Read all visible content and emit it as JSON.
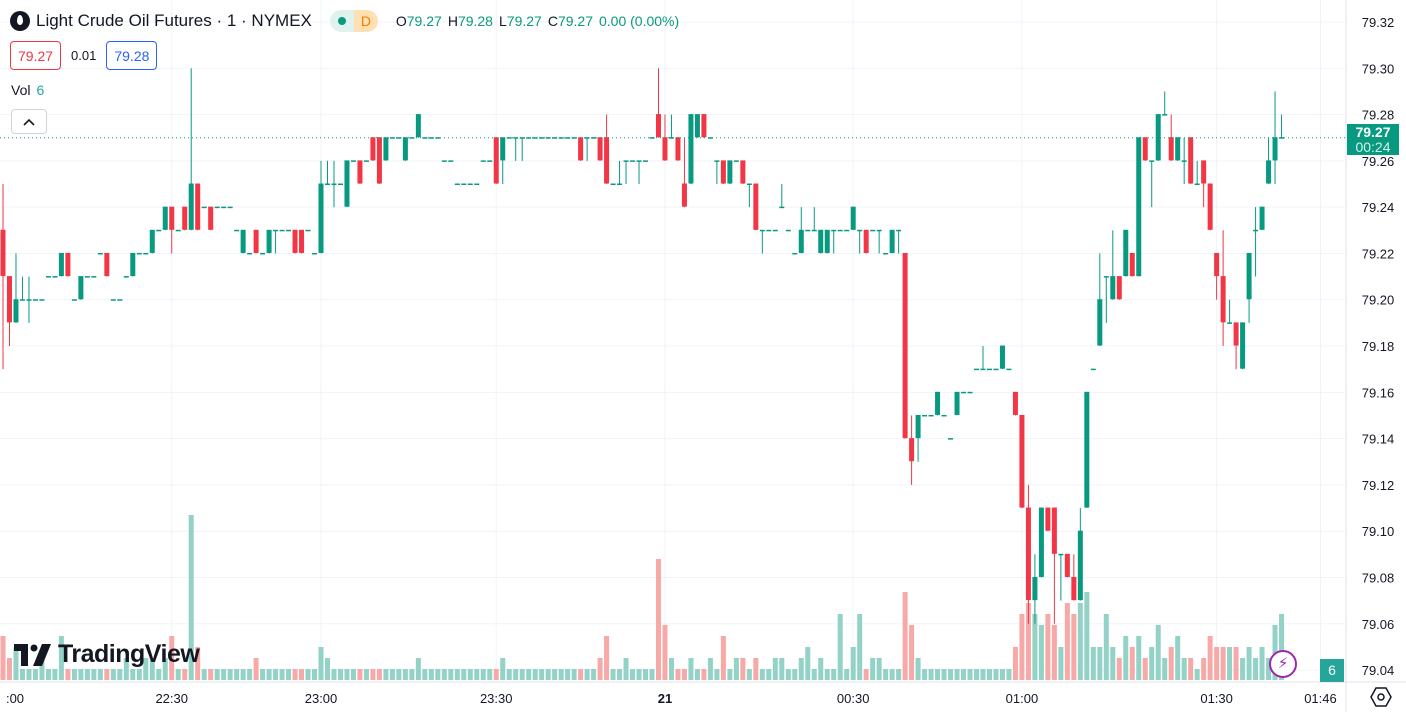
{
  "header": {
    "symbol_icon": "oil-drop-icon",
    "title": "Light Crude Oil Futures · 1 · NYMEX",
    "badge_letter": "D",
    "ohlc": [
      {
        "k": "O",
        "v": "79.27"
      },
      {
        "k": "H",
        "v": "79.28"
      },
      {
        "k": "L",
        "v": "79.27"
      },
      {
        "k": "C",
        "v": "79.27"
      }
    ],
    "change": "0.00 (0.00%)"
  },
  "quote": {
    "bid": "79.27",
    "spread": "0.01",
    "ask": "79.28"
  },
  "volume_legend": {
    "label": "Vol",
    "value": "6"
  },
  "price_label": {
    "price": "79.27",
    "countdown": "00:24"
  },
  "volume_axis_label": "6",
  "logo_text": "TradingView",
  "colors": {
    "up": "#089981",
    "down": "#F23645",
    "vol_up": "#92D2C7",
    "vol_down": "#F7A9A7",
    "price_line": "#089981"
  },
  "chart_data": {
    "type": "candlestick",
    "interval": "1",
    "y_ticks": [
      "79.32",
      "79.30",
      "79.28",
      "79.26",
      "79.24",
      "79.22",
      "79.20",
      "79.18",
      "79.16",
      "79.14",
      "79.12",
      "79.10",
      "79.08",
      "79.06",
      "79.04"
    ],
    "ylim": [
      79.035,
      79.32
    ],
    "x_ticks": [
      {
        "label": ":00",
        "bar": 3
      },
      {
        "label": "22:30",
        "bar": 26
      },
      {
        "label": "23:00",
        "bar": 49
      },
      {
        "label": "23:30",
        "bar": 76
      },
      {
        "label": "21",
        "bar": 102,
        "bold": true
      },
      {
        "label": "00:30",
        "bar": 131
      },
      {
        "label": "01:00",
        "bar": 157
      },
      {
        "label": "01:30",
        "bar": 187
      },
      {
        "label": "01:46",
        "bar": 203
      }
    ],
    "last_price": 79.27,
    "grid": true,
    "ohlcv_columns": [
      "open",
      "high",
      "low",
      "close",
      "volume"
    ],
    "ohlcv": [
      [
        79.23,
        79.25,
        79.17,
        79.21,
        4
      ],
      [
        79.21,
        79.21,
        79.18,
        79.19,
        2
      ],
      [
        79.19,
        79.22,
        79.19,
        79.2,
        3
      ],
      [
        79.2,
        79.21,
        79.2,
        79.2,
        1
      ],
      [
        79.2,
        79.21,
        79.19,
        79.2,
        1
      ],
      [
        79.2,
        79.2,
        79.2,
        79.2,
        1
      ],
      [
        79.2,
        79.2,
        79.2,
        79.2,
        2
      ],
      [
        79.21,
        79.21,
        79.21,
        79.21,
        1
      ],
      [
        79.21,
        79.21,
        79.21,
        79.21,
        1
      ],
      [
        79.21,
        79.22,
        79.21,
        79.22,
        4
      ],
      [
        79.22,
        79.22,
        79.21,
        79.21,
        1
      ],
      [
        79.2,
        79.2,
        79.2,
        79.2,
        1
      ],
      [
        79.2,
        79.21,
        79.2,
        79.21,
        1
      ],
      [
        79.21,
        79.21,
        79.21,
        79.21,
        1
      ],
      [
        79.21,
        79.21,
        79.21,
        79.21,
        1
      ],
      [
        79.22,
        79.22,
        79.22,
        79.22,
        1
      ],
      [
        79.22,
        79.22,
        79.21,
        79.21,
        1
      ],
      [
        79.2,
        79.2,
        79.2,
        79.2,
        1
      ],
      [
        79.2,
        79.2,
        79.2,
        79.2,
        1
      ],
      [
        79.21,
        79.21,
        79.21,
        79.21,
        2
      ],
      [
        79.21,
        79.22,
        79.21,
        79.22,
        1
      ],
      [
        79.22,
        79.22,
        79.22,
        79.22,
        1
      ],
      [
        79.22,
        79.22,
        79.22,
        79.22,
        2
      ],
      [
        79.22,
        79.23,
        79.22,
        79.23,
        2
      ],
      [
        79.23,
        79.23,
        79.23,
        79.23,
        1
      ],
      [
        79.23,
        79.24,
        79.23,
        79.24,
        2
      ],
      [
        79.24,
        79.24,
        79.22,
        79.23,
        4
      ],
      [
        79.23,
        79.23,
        79.23,
        79.23,
        1
      ],
      [
        79.24,
        79.24,
        79.23,
        79.23,
        1
      ],
      [
        79.23,
        79.3,
        79.23,
        79.25,
        15
      ],
      [
        79.25,
        79.25,
        79.23,
        79.23,
        3
      ],
      [
        79.24,
        79.24,
        79.24,
        79.24,
        1
      ],
      [
        79.24,
        79.24,
        79.23,
        79.23,
        1
      ],
      [
        79.24,
        79.24,
        79.24,
        79.24,
        1
      ],
      [
        79.24,
        79.24,
        79.24,
        79.24,
        1
      ],
      [
        79.24,
        79.24,
        79.24,
        79.24,
        1
      ],
      [
        79.23,
        79.23,
        79.23,
        79.23,
        1
      ],
      [
        79.22,
        79.23,
        79.22,
        79.23,
        1
      ],
      [
        79.22,
        79.22,
        79.22,
        79.22,
        1
      ],
      [
        79.23,
        79.23,
        79.22,
        79.22,
        2
      ],
      [
        79.22,
        79.22,
        79.22,
        79.22,
        1
      ],
      [
        79.22,
        79.23,
        79.22,
        79.23,
        1
      ],
      [
        79.23,
        79.23,
        79.22,
        79.23,
        1
      ],
      [
        79.23,
        79.23,
        79.23,
        79.23,
        1
      ],
      [
        79.23,
        79.23,
        79.23,
        79.23,
        1
      ],
      [
        79.23,
        79.23,
        79.22,
        79.22,
        1
      ],
      [
        79.23,
        79.23,
        79.22,
        79.22,
        1
      ],
      [
        79.23,
        79.23,
        79.23,
        79.23,
        1
      ],
      [
        79.22,
        79.22,
        79.22,
        79.22,
        1
      ],
      [
        79.22,
        79.26,
        79.22,
        79.25,
        3
      ],
      [
        79.25,
        79.26,
        79.25,
        79.25,
        2
      ],
      [
        79.25,
        79.26,
        79.24,
        79.25,
        1
      ],
      [
        79.25,
        79.25,
        79.25,
        79.25,
        1
      ],
      [
        79.24,
        79.26,
        79.24,
        79.26,
        1
      ],
      [
        79.26,
        79.26,
        79.26,
        79.26,
        1
      ],
      [
        79.26,
        79.26,
        79.25,
        79.25,
        1
      ],
      [
        79.26,
        79.26,
        79.26,
        79.26,
        1
      ],
      [
        79.27,
        79.27,
        79.26,
        79.26,
        1
      ],
      [
        79.27,
        79.27,
        79.25,
        79.25,
        1
      ],
      [
        79.26,
        79.27,
        79.26,
        79.27,
        1
      ],
      [
        79.27,
        79.27,
        79.27,
        79.27,
        1
      ],
      [
        79.27,
        79.27,
        79.27,
        79.27,
        1
      ],
      [
        79.26,
        79.27,
        79.26,
        79.27,
        1
      ],
      [
        79.27,
        79.27,
        79.27,
        79.27,
        1
      ],
      [
        79.27,
        79.28,
        79.27,
        79.28,
        2
      ],
      [
        79.27,
        79.27,
        79.27,
        79.27,
        1
      ],
      [
        79.27,
        79.27,
        79.27,
        79.27,
        1
      ],
      [
        79.27,
        79.27,
        79.27,
        79.27,
        1
      ],
      [
        79.26,
        79.26,
        79.26,
        79.26,
        1
      ],
      [
        79.26,
        79.26,
        79.26,
        79.26,
        1
      ],
      [
        79.25,
        79.25,
        79.25,
        79.25,
        1
      ],
      [
        79.25,
        79.25,
        79.25,
        79.25,
        1
      ],
      [
        79.25,
        79.25,
        79.25,
        79.25,
        1
      ],
      [
        79.25,
        79.25,
        79.25,
        79.25,
        1
      ],
      [
        79.26,
        79.26,
        79.26,
        79.26,
        1
      ],
      [
        79.26,
        79.26,
        79.26,
        79.26,
        1
      ],
      [
        79.27,
        79.27,
        79.25,
        79.25,
        1
      ],
      [
        79.26,
        79.27,
        79.25,
        79.27,
        2
      ],
      [
        79.27,
        79.27,
        79.27,
        79.27,
        1
      ],
      [
        79.27,
        79.27,
        79.26,
        79.27,
        1
      ],
      [
        79.27,
        79.27,
        79.26,
        79.27,
        1
      ],
      [
        79.27,
        79.27,
        79.27,
        79.27,
        1
      ],
      [
        79.27,
        79.27,
        79.27,
        79.27,
        1
      ],
      [
        79.27,
        79.27,
        79.27,
        79.27,
        1
      ],
      [
        79.27,
        79.27,
        79.27,
        79.27,
        1
      ],
      [
        79.27,
        79.27,
        79.27,
        79.27,
        1
      ],
      [
        79.27,
        79.27,
        79.27,
        79.27,
        1
      ],
      [
        79.27,
        79.27,
        79.27,
        79.27,
        1
      ],
      [
        79.27,
        79.27,
        79.27,
        79.27,
        1
      ],
      [
        79.27,
        79.27,
        79.26,
        79.26,
        1
      ],
      [
        79.27,
        79.27,
        79.26,
        79.27,
        1
      ],
      [
        79.27,
        79.27,
        79.27,
        79.27,
        1
      ],
      [
        79.27,
        79.27,
        79.26,
        79.26,
        2
      ],
      [
        79.27,
        79.28,
        79.25,
        79.25,
        4
      ],
      [
        79.25,
        79.25,
        79.25,
        79.25,
        1
      ],
      [
        79.25,
        79.26,
        79.25,
        79.25,
        1
      ],
      [
        79.26,
        79.26,
        79.25,
        79.26,
        2
      ],
      [
        79.26,
        79.26,
        79.26,
        79.26,
        1
      ],
      [
        79.26,
        79.26,
        79.25,
        79.26,
        1
      ],
      [
        79.26,
        79.26,
        79.26,
        79.26,
        1
      ],
      [
        79.27,
        79.27,
        79.27,
        79.27,
        1
      ],
      [
        79.28,
        79.3,
        79.27,
        79.27,
        11
      ],
      [
        79.27,
        79.28,
        79.26,
        79.26,
        5
      ],
      [
        79.27,
        79.28,
        79.27,
        79.27,
        2
      ],
      [
        79.27,
        79.27,
        79.26,
        79.26,
        1
      ],
      [
        79.25,
        79.27,
        79.24,
        79.24,
        1
      ],
      [
        79.25,
        79.28,
        79.25,
        79.28,
        2
      ],
      [
        79.27,
        79.28,
        79.27,
        79.28,
        1
      ],
      [
        79.28,
        79.28,
        79.27,
        79.27,
        1
      ],
      [
        79.27,
        79.27,
        79.27,
        79.27,
        2
      ],
      [
        79.26,
        79.26,
        79.25,
        79.26,
        1
      ],
      [
        79.26,
        79.26,
        79.25,
        79.25,
        4
      ],
      [
        79.25,
        79.26,
        79.25,
        79.26,
        1
      ],
      [
        79.26,
        79.26,
        79.26,
        79.26,
        2
      ],
      [
        79.26,
        79.26,
        79.25,
        79.25,
        2
      ],
      [
        79.25,
        79.25,
        79.24,
        79.25,
        1
      ],
      [
        79.25,
        79.25,
        79.23,
        79.23,
        2
      ],
      [
        79.23,
        79.23,
        79.22,
        79.23,
        1
      ],
      [
        79.23,
        79.23,
        79.23,
        79.23,
        1
      ],
      [
        79.23,
        79.23,
        79.23,
        79.23,
        2
      ],
      [
        79.24,
        79.25,
        79.24,
        79.24,
        2
      ],
      [
        79.23,
        79.23,
        79.23,
        79.23,
        1
      ],
      [
        79.22,
        79.22,
        79.22,
        79.22,
        1
      ],
      [
        79.22,
        79.24,
        79.22,
        79.23,
        2
      ],
      [
        79.23,
        79.23,
        79.23,
        79.23,
        3
      ],
      [
        79.23,
        79.24,
        79.23,
        79.23,
        1
      ],
      [
        79.22,
        79.23,
        79.22,
        79.23,
        2
      ],
      [
        79.22,
        79.23,
        79.22,
        79.23,
        1
      ],
      [
        79.23,
        79.23,
        79.22,
        79.23,
        1
      ],
      [
        79.23,
        79.23,
        79.23,
        79.23,
        6
      ],
      [
        79.23,
        79.23,
        79.23,
        79.23,
        1
      ],
      [
        79.23,
        79.24,
        79.23,
        79.24,
        3
      ],
      [
        79.23,
        79.23,
        79.22,
        79.23,
        6
      ],
      [
        79.23,
        79.23,
        79.22,
        79.22,
        1
      ],
      [
        79.23,
        79.23,
        79.23,
        79.23,
        2
      ],
      [
        79.23,
        79.23,
        79.22,
        79.23,
        2
      ],
      [
        79.22,
        79.22,
        79.22,
        79.22,
        1
      ],
      [
        79.22,
        79.23,
        79.22,
        79.23,
        1
      ],
      [
        79.23,
        79.23,
        79.22,
        79.23,
        1
      ],
      [
        79.22,
        79.22,
        79.14,
        79.14,
        8
      ],
      [
        79.14,
        79.15,
        79.12,
        79.13,
        5
      ],
      [
        79.14,
        79.15,
        79.13,
        79.15,
        2
      ],
      [
        79.15,
        79.15,
        79.15,
        79.15,
        1
      ],
      [
        79.15,
        79.15,
        79.15,
        79.15,
        1
      ],
      [
        79.15,
        79.16,
        79.15,
        79.16,
        1
      ],
      [
        79.15,
        79.15,
        79.15,
        79.15,
        1
      ],
      [
        79.14,
        79.14,
        79.14,
        79.14,
        1
      ],
      [
        79.15,
        79.16,
        79.15,
        79.16,
        1
      ],
      [
        79.16,
        79.16,
        79.16,
        79.16,
        1
      ],
      [
        79.16,
        79.16,
        79.16,
        79.16,
        1
      ],
      [
        79.17,
        79.17,
        79.17,
        79.17,
        1
      ],
      [
        79.17,
        79.18,
        79.17,
        79.17,
        1
      ],
      [
        79.17,
        79.17,
        79.17,
        79.17,
        1
      ],
      [
        79.17,
        79.17,
        79.17,
        79.17,
        1
      ],
      [
        79.17,
        79.18,
        79.17,
        79.18,
        1
      ],
      [
        79.17,
        79.17,
        79.17,
        79.17,
        1
      ],
      [
        79.16,
        79.16,
        79.15,
        79.15,
        3
      ],
      [
        79.15,
        79.15,
        79.11,
        79.11,
        6
      ],
      [
        79.11,
        79.12,
        79.06,
        79.07,
        7
      ],
      [
        79.07,
        79.09,
        79.06,
        79.08,
        6
      ],
      [
        79.08,
        79.11,
        79.08,
        79.11,
        5
      ],
      [
        79.11,
        79.11,
        79.1,
        79.1,
        6
      ],
      [
        79.11,
        79.11,
        79.06,
        79.09,
        5
      ],
      [
        79.09,
        79.09,
        79.07,
        79.09,
        3
      ],
      [
        79.09,
        79.09,
        79.08,
        79.08,
        7
      ],
      [
        79.08,
        79.09,
        79.07,
        79.07,
        6
      ],
      [
        79.07,
        79.11,
        79.07,
        79.1,
        7
      ],
      [
        79.11,
        79.16,
        79.11,
        79.16,
        8
      ],
      [
        79.17,
        79.17,
        79.17,
        79.17,
        3
      ],
      [
        79.18,
        79.22,
        79.18,
        79.2,
        3
      ],
      [
        79.21,
        79.21,
        79.19,
        79.21,
        6
      ],
      [
        79.2,
        79.23,
        79.2,
        79.21,
        3
      ],
      [
        79.21,
        79.21,
        79.2,
        79.2,
        2
      ],
      [
        79.21,
        79.23,
        79.21,
        79.23,
        4
      ],
      [
        79.22,
        79.22,
        79.21,
        79.21,
        3
      ],
      [
        79.21,
        79.27,
        79.21,
        79.27,
        4
      ],
      [
        79.27,
        79.27,
        79.26,
        79.26,
        2
      ],
      [
        79.26,
        79.26,
        79.24,
        79.26,
        3
      ],
      [
        79.26,
        79.28,
        79.26,
        79.28,
        5
      ],
      [
        79.28,
        79.29,
        79.28,
        79.28,
        2
      ],
      [
        79.27,
        79.28,
        79.26,
        79.26,
        3
      ],
      [
        79.26,
        79.27,
        79.26,
        79.27,
        4
      ],
      [
        79.26,
        79.27,
        79.25,
        79.26,
        2
      ],
      [
        79.27,
        79.27,
        79.25,
        79.25,
        2
      ],
      [
        79.25,
        79.26,
        79.25,
        79.25,
        1
      ],
      [
        79.26,
        79.26,
        79.24,
        79.25,
        2
      ],
      [
        79.25,
        79.25,
        79.23,
        79.23,
        4
      ],
      [
        79.22,
        79.22,
        79.2,
        79.21,
        3
      ],
      [
        79.21,
        79.23,
        79.18,
        79.19,
        3
      ],
      [
        79.19,
        79.2,
        79.19,
        79.19,
        3
      ],
      [
        79.19,
        79.19,
        79.17,
        79.18,
        3
      ],
      [
        79.17,
        79.19,
        79.17,
        79.19,
        2
      ],
      [
        79.2,
        79.22,
        79.19,
        79.22,
        3
      ],
      [
        79.23,
        79.24,
        79.21,
        79.23,
        2
      ],
      [
        79.23,
        79.24,
        79.23,
        79.24,
        3
      ],
      [
        79.25,
        79.27,
        79.25,
        79.26,
        2
      ],
      [
        79.26,
        79.29,
        79.25,
        79.27,
        5
      ],
      [
        79.27,
        79.28,
        79.27,
        79.27,
        6
      ]
    ]
  }
}
